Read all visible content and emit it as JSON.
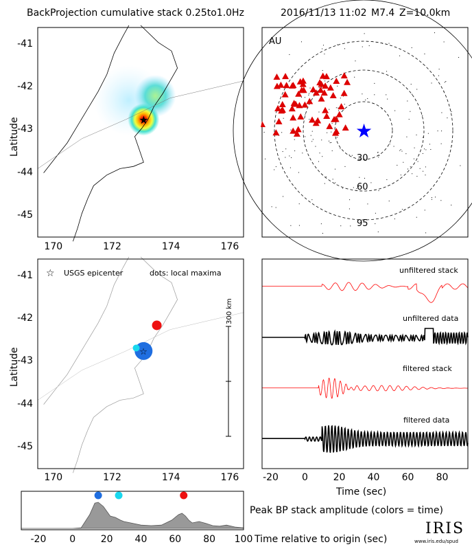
{
  "header": {
    "title": "BackProjection cumulative stack 0.25to1.0Hz",
    "event": "2016/11/13 11:02",
    "magnitude": "M7.4",
    "depth": "Z=10.0km"
  },
  "colors": {
    "red": "#ff0000",
    "blue": "#0000ff",
    "station_red": "#dd0000",
    "dot_blue": "#1f6ee0",
    "dot_cyan": "#19d8ee",
    "dot_red": "#ee1111",
    "gray_fill": "#999999"
  },
  "chart_data": [
    {
      "id": "bp-map",
      "type": "heatmap",
      "ylabel": "Latitude",
      "xticks": [
        "170",
        "172",
        "174",
        "176"
      ],
      "yticks": [
        "-41",
        "-42",
        "-43",
        "-44",
        "-45"
      ],
      "xlim": [
        169.5,
        176.5
      ],
      "ylim": [
        -45.5,
        -40.6
      ],
      "epicenter": {
        "lon": 173.1,
        "lat": -42.75
      },
      "blobs": [
        {
          "lon": 173.1,
          "lat": -42.75,
          "amp": 1.0,
          "sx": 0.35,
          "sy": 0.25
        },
        {
          "lon": 173.5,
          "lat": -42.2,
          "amp": 0.55,
          "sx": 0.35,
          "sy": 0.3
        },
        {
          "lon": 172.6,
          "lat": -42.3,
          "amp": 0.3,
          "sx": 0.6,
          "sy": 0.45
        }
      ]
    },
    {
      "id": "station-map",
      "type": "scatter",
      "network_label": "AU",
      "ring_labels": [
        "30",
        "60",
        "95"
      ],
      "stations_count": 60
    },
    {
      "id": "local-maxima-map",
      "type": "scatter",
      "ylabel": "Latitude",
      "xticks": [
        "170",
        "172",
        "174",
        "176"
      ],
      "yticks": [
        "-41",
        "-42",
        "-43",
        "-44",
        "-45"
      ],
      "legend_star": "USGS epicenter",
      "legend_dots": "dots: local maxima",
      "scale_bar": "300 km",
      "points": [
        {
          "lon": 173.1,
          "lat": -42.75,
          "size": 13,
          "color": "#1f6ee0"
        },
        {
          "lon": 172.85,
          "lat": -42.68,
          "size": 5,
          "color": "#19d8ee"
        },
        {
          "lon": 173.55,
          "lat": -42.15,
          "size": 7,
          "color": "#ee1111"
        }
      ]
    },
    {
      "id": "waveforms",
      "type": "line",
      "xlabel": "Time (sec)",
      "xticks": [
        "-20",
        "0",
        "20",
        "40",
        "60",
        "80"
      ],
      "xlim": [
        -25,
        95
      ],
      "series": [
        {
          "name": "unfiltered stack",
          "color": "#ff0000"
        },
        {
          "name": "unfiltered data",
          "color": "#000000"
        },
        {
          "name": "filtered stack",
          "color": "#ff0000"
        },
        {
          "name": "filtered data",
          "color": "#000000"
        }
      ]
    },
    {
      "id": "peak-amplitude",
      "type": "area",
      "caption": "Peak BP stack amplitude (colors = time)",
      "xlabel": "Time relative to origin (sec)",
      "xticks": [
        "-20",
        "0",
        "20",
        "40",
        "60",
        "80",
        "100"
      ],
      "xlim": [
        -30,
        100
      ],
      "x": [
        -30,
        0,
        5,
        10,
        13,
        15,
        18,
        22,
        25,
        28,
        30,
        34,
        40,
        46,
        52,
        58,
        62,
        64,
        66,
        68,
        70,
        74,
        78,
        82,
        86,
        90,
        95,
        100
      ],
      "y": [
        0,
        0,
        0.02,
        0.5,
        0.92,
        0.95,
        0.8,
        0.45,
        0.4,
        0.3,
        0.25,
        0.2,
        0.12,
        0.1,
        0.12,
        0.3,
        0.5,
        0.55,
        0.45,
        0.3,
        0.2,
        0.25,
        0.18,
        0.1,
        0.08,
        0.12,
        0.05,
        0.02
      ],
      "markers": [
        {
          "x": 15,
          "color": "#1f6ee0"
        },
        {
          "x": 27,
          "color": "#19d8ee"
        },
        {
          "x": 65,
          "color": "#ee1111"
        }
      ]
    }
  ],
  "logo": {
    "name": "IRIS",
    "url_text": "www.iris.edu/spud"
  }
}
